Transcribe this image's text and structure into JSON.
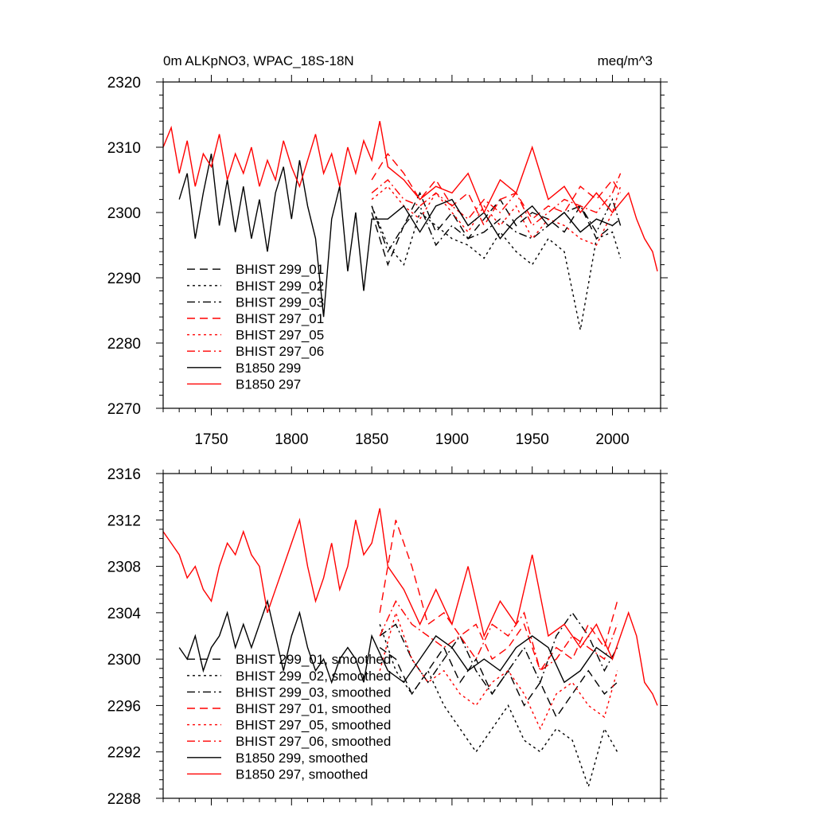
{
  "figure": {
    "title_left": "0m ALKpNO3, WPAC_18S-18N",
    "title_right": "meq/m^3"
  },
  "colors": {
    "black": "#000000",
    "red": "#ff0000"
  },
  "chart_data": [
    {
      "type": "line",
      "title": "0m ALKpNO3, WPAC_18S-18N",
      "units": "meq/m^3",
      "xlim": [
        1720,
        2030
      ],
      "ylim": [
        2270,
        2320
      ],
      "xticks": [
        1750,
        1800,
        1850,
        1900,
        1950,
        2000
      ],
      "yticks": [
        2270,
        2280,
        2290,
        2300,
        2310,
        2320
      ],
      "grid": false,
      "legend_position": "lower-left",
      "series": [
        {
          "name": "BHIST 299_01",
          "color": "black",
          "dash": "dashed",
          "x": [
            1850,
            1860,
            1870,
            1880,
            1890,
            1900,
            1910,
            1920,
            1930,
            1940,
            1950,
            1960,
            1970,
            1980,
            1990,
            2000,
            2005
          ],
          "y": [
            2300,
            2292,
            2298,
            2303,
            2297,
            2300,
            2296,
            2299,
            2302,
            2298,
            2300,
            2299,
            2297,
            2301,
            2296,
            2298,
            2299
          ]
        },
        {
          "name": "BHIST 299_02",
          "color": "black",
          "dash": "dotted",
          "x": [
            1850,
            1860,
            1870,
            1880,
            1890,
            1900,
            1910,
            1920,
            1930,
            1940,
            1950,
            1960,
            1970,
            1980,
            1990,
            2000,
            2005
          ],
          "y": [
            2301,
            2295,
            2292,
            2300,
            2298,
            2296,
            2295,
            2293,
            2297,
            2294,
            2292,
            2296,
            2294,
            2282,
            2296,
            2297,
            2293
          ]
        },
        {
          "name": "BHIST 299_03",
          "color": "black",
          "dash": "dashdot",
          "x": [
            1850,
            1860,
            1870,
            1880,
            1890,
            1900,
            1910,
            1920,
            1930,
            1940,
            1950,
            1960,
            1970,
            1980,
            1990,
            2000,
            2005
          ],
          "y": [
            2301,
            2294,
            2298,
            2301,
            2295,
            2298,
            2296,
            2297,
            2299,
            2297,
            2296,
            2298,
            2300,
            2301,
            2297,
            2302,
            2298
          ]
        },
        {
          "name": "BHIST 297_01",
          "color": "red",
          "dash": "dashed",
          "x": [
            1850,
            1860,
            1870,
            1880,
            1890,
            1900,
            1910,
            1920,
            1930,
            1940,
            1950,
            1960,
            1970,
            1980,
            1990,
            2000,
            2005
          ],
          "y": [
            2305,
            2309,
            2306,
            2302,
            2305,
            2301,
            2303,
            2298,
            2302,
            2303,
            2299,
            2301,
            2300,
            2304,
            2302,
            2305,
            2303
          ]
        },
        {
          "name": "BHIST 297_05",
          "color": "red",
          "dash": "dotted",
          "x": [
            1850,
            1860,
            1870,
            1880,
            1890,
            1900,
            1910,
            1920,
            1930,
            1940,
            1950,
            1960,
            1970,
            1980,
            1990,
            2000,
            2005
          ],
          "y": [
            2302,
            2304,
            2301,
            2299,
            2303,
            2300,
            2297,
            2301,
            2298,
            2301,
            2296,
            2299,
            2298,
            2296,
            2295,
            2300,
            2304
          ]
        },
        {
          "name": "BHIST 297_06",
          "color": "red",
          "dash": "dashdot",
          "x": [
            1850,
            1860,
            1870,
            1880,
            1890,
            1900,
            1910,
            1920,
            1930,
            1940,
            1950,
            1960,
            1970,
            1980,
            1990,
            2000,
            2005
          ],
          "y": [
            2303,
            2305,
            2302,
            2301,
            2303,
            2301,
            2299,
            2302,
            2300,
            2303,
            2298,
            2300,
            2302,
            2301,
            2300,
            2303,
            2306
          ]
        },
        {
          "name": "B1850 299",
          "color": "black",
          "dash": "solid",
          "x": [
            1730,
            1735,
            1740,
            1745,
            1750,
            1755,
            1760,
            1765,
            1770,
            1775,
            1780,
            1785,
            1790,
            1795,
            1800,
            1805,
            1810,
            1815,
            1820,
            1825,
            1830,
            1835,
            1840,
            1845,
            1850,
            1860,
            1870,
            1880,
            1890,
            1900,
            1910,
            1920,
            1930,
            1940,
            1950,
            1960,
            1970,
            1980,
            1990,
            2000
          ],
          "y": [
            2302,
            2306,
            2296,
            2303,
            2309,
            2298,
            2305,
            2297,
            2304,
            2296,
            2302,
            2294,
            2303,
            2307,
            2299,
            2308,
            2301,
            2296,
            2284,
            2299,
            2304,
            2291,
            2300,
            2288,
            2299,
            2299,
            2301,
            2297,
            2301,
            2302,
            2298,
            2300,
            2296,
            2299,
            2301,
            2298,
            2300,
            2297,
            2299,
            2298
          ]
        },
        {
          "name": "B1850 297",
          "color": "red",
          "dash": "solid",
          "x": [
            1720,
            1725,
            1730,
            1735,
            1740,
            1745,
            1750,
            1755,
            1760,
            1765,
            1770,
            1775,
            1780,
            1785,
            1790,
            1795,
            1800,
            1805,
            1810,
            1815,
            1820,
            1825,
            1830,
            1835,
            1840,
            1845,
            1850,
            1855,
            1860,
            1870,
            1880,
            1890,
            1900,
            1910,
            1920,
            1930,
            1940,
            1950,
            1960,
            1970,
            1980,
            1990,
            2000,
            2010,
            2015,
            2020,
            2025,
            2028
          ],
          "y": [
            2310,
            2313,
            2306,
            2311,
            2304,
            2309,
            2307,
            2312,
            2305,
            2309,
            2306,
            2310,
            2304,
            2308,
            2305,
            2311,
            2307,
            2304,
            2308,
            2312,
            2306,
            2309,
            2304,
            2310,
            2306,
            2311,
            2308,
            2314,
            2307,
            2305,
            2302,
            2304,
            2303,
            2306,
            2300,
            2305,
            2303,
            2310,
            2302,
            2304,
            2300,
            2303,
            2300,
            2303,
            2299,
            2296,
            2294,
            2291
          ]
        }
      ]
    },
    {
      "type": "line",
      "title": "",
      "xlim": [
        1720,
        2030
      ],
      "ylim": [
        2288,
        2316
      ],
      "xticks": [
        1750,
        1800,
        1850,
        1900,
        1950,
        2000
      ],
      "yticks": [
        2288,
        2292,
        2296,
        2300,
        2304,
        2308,
        2312,
        2316
      ],
      "grid": false,
      "legend_position": "lower-left",
      "series": [
        {
          "name": "BHIST 299_01, smoothed",
          "color": "black",
          "dash": "dashed",
          "x": [
            1855,
            1865,
            1875,
            1885,
            1895,
            1905,
            1915,
            1925,
            1935,
            1945,
            1955,
            1965,
            1975,
            1985,
            1995,
            2003
          ],
          "y": [
            2301,
            2300,
            2297,
            2299,
            2301,
            2298,
            2300,
            2297,
            2299,
            2296,
            2298,
            2295,
            2297,
            2299,
            2297,
            2298
          ]
        },
        {
          "name": "BHIST 299_02, smoothed",
          "color": "black",
          "dash": "dotted",
          "x": [
            1855,
            1865,
            1875,
            1885,
            1895,
            1905,
            1915,
            1925,
            1935,
            1945,
            1955,
            1965,
            1975,
            1985,
            1995,
            2003
          ],
          "y": [
            2303,
            2299,
            2297,
            2299,
            2296,
            2294,
            2292,
            2294,
            2296,
            2293,
            2292,
            2294,
            2293,
            2289,
            2294,
            2292
          ]
        },
        {
          "name": "BHIST 299_03, smoothed",
          "color": "black",
          "dash": "dashdot",
          "x": [
            1855,
            1865,
            1875,
            1885,
            1895,
            1905,
            1915,
            1925,
            1935,
            1945,
            1955,
            1965,
            1975,
            1985,
            1995,
            2003
          ],
          "y": [
            2302,
            2303,
            2300,
            2298,
            2300,
            2302,
            2299,
            2297,
            2299,
            2301,
            2298,
            2302,
            2304,
            2302,
            2299,
            2301
          ]
        },
        {
          "name": "BHIST 297_01, smoothed",
          "color": "red",
          "dash": "dashed",
          "x": [
            1855,
            1865,
            1875,
            1885,
            1895,
            1905,
            1915,
            1925,
            1935,
            1945,
            1955,
            1965,
            1975,
            1985,
            1995,
            2003
          ],
          "y": [
            2304,
            2312,
            2308,
            2303,
            2304,
            2302,
            2303,
            2300,
            2301,
            2303,
            2299,
            2301,
            2300,
            2303,
            2301,
            2305
          ]
        },
        {
          "name": "BHIST 297_05, smoothed",
          "color": "red",
          "dash": "dotted",
          "x": [
            1855,
            1865,
            1875,
            1885,
            1895,
            1905,
            1915,
            1925,
            1935,
            1945,
            1955,
            1965,
            1975,
            1985,
            1995,
            2003
          ],
          "y": [
            2299,
            2304,
            2300,
            2298,
            2299,
            2297,
            2296,
            2298,
            2299,
            2297,
            2294,
            2297,
            2298,
            2296,
            2295,
            2299
          ]
        },
        {
          "name": "BHIST 297_06, smoothed",
          "color": "red",
          "dash": "dashdot",
          "x": [
            1855,
            1865,
            1875,
            1885,
            1895,
            1905,
            1915,
            1925,
            1935,
            1945,
            1955,
            1965,
            1975,
            1985,
            1995,
            2003
          ],
          "y": [
            2302,
            2305,
            2303,
            2302,
            2301,
            2302,
            2300,
            2303,
            2302,
            2304,
            2299,
            2300,
            2302,
            2301,
            2300,
            2303
          ]
        },
        {
          "name": "B1850 299, smoothed",
          "color": "black",
          "dash": "solid",
          "x": [
            1730,
            1735,
            1740,
            1745,
            1750,
            1755,
            1760,
            1765,
            1770,
            1775,
            1780,
            1785,
            1790,
            1795,
            1800,
            1805,
            1810,
            1815,
            1820,
            1825,
            1830,
            1835,
            1840,
            1845,
            1850,
            1860,
            1870,
            1880,
            1890,
            1900,
            1910,
            1920,
            1930,
            1940,
            1950,
            1960,
            1970,
            1980,
            1990,
            2000
          ],
          "y": [
            2301,
            2300,
            2302,
            2299,
            2301,
            2302,
            2304,
            2301,
            2303,
            2301,
            2303,
            2305,
            2302,
            2299,
            2302,
            2304,
            2301,
            2299,
            2300,
            2298,
            2300,
            2301,
            2300,
            2298,
            2302,
            2299,
            2298,
            2300,
            2302,
            2301,
            2299,
            2300,
            2299,
            2301,
            2302,
            2301,
            2298,
            2299,
            2301,
            2300
          ]
        },
        {
          "name": "B1850 297, smoothed",
          "color": "red",
          "dash": "solid",
          "x": [
            1720,
            1725,
            1730,
            1735,
            1740,
            1745,
            1750,
            1755,
            1760,
            1765,
            1770,
            1775,
            1780,
            1785,
            1790,
            1795,
            1800,
            1805,
            1810,
            1815,
            1820,
            1825,
            1830,
            1835,
            1840,
            1845,
            1850,
            1855,
            1860,
            1870,
            1880,
            1890,
            1900,
            1910,
            1920,
            1930,
            1940,
            1950,
            1960,
            1970,
            1980,
            1990,
            2000,
            2010,
            2015,
            2020,
            2025,
            2028
          ],
          "y": [
            2311,
            2310,
            2309,
            2307,
            2308,
            2306,
            2305,
            2308,
            2310,
            2309,
            2311,
            2309,
            2308,
            2304,
            2306,
            2308,
            2310,
            2312,
            2308,
            2305,
            2307,
            2310,
            2306,
            2308,
            2312,
            2309,
            2310,
            2313,
            2308,
            2306,
            2303,
            2306,
            2303,
            2308,
            2302,
            2305,
            2303,
            2309,
            2302,
            2303,
            2301,
            2303,
            2300,
            2304,
            2302,
            2298,
            2297,
            2296
          ]
        }
      ]
    }
  ]
}
